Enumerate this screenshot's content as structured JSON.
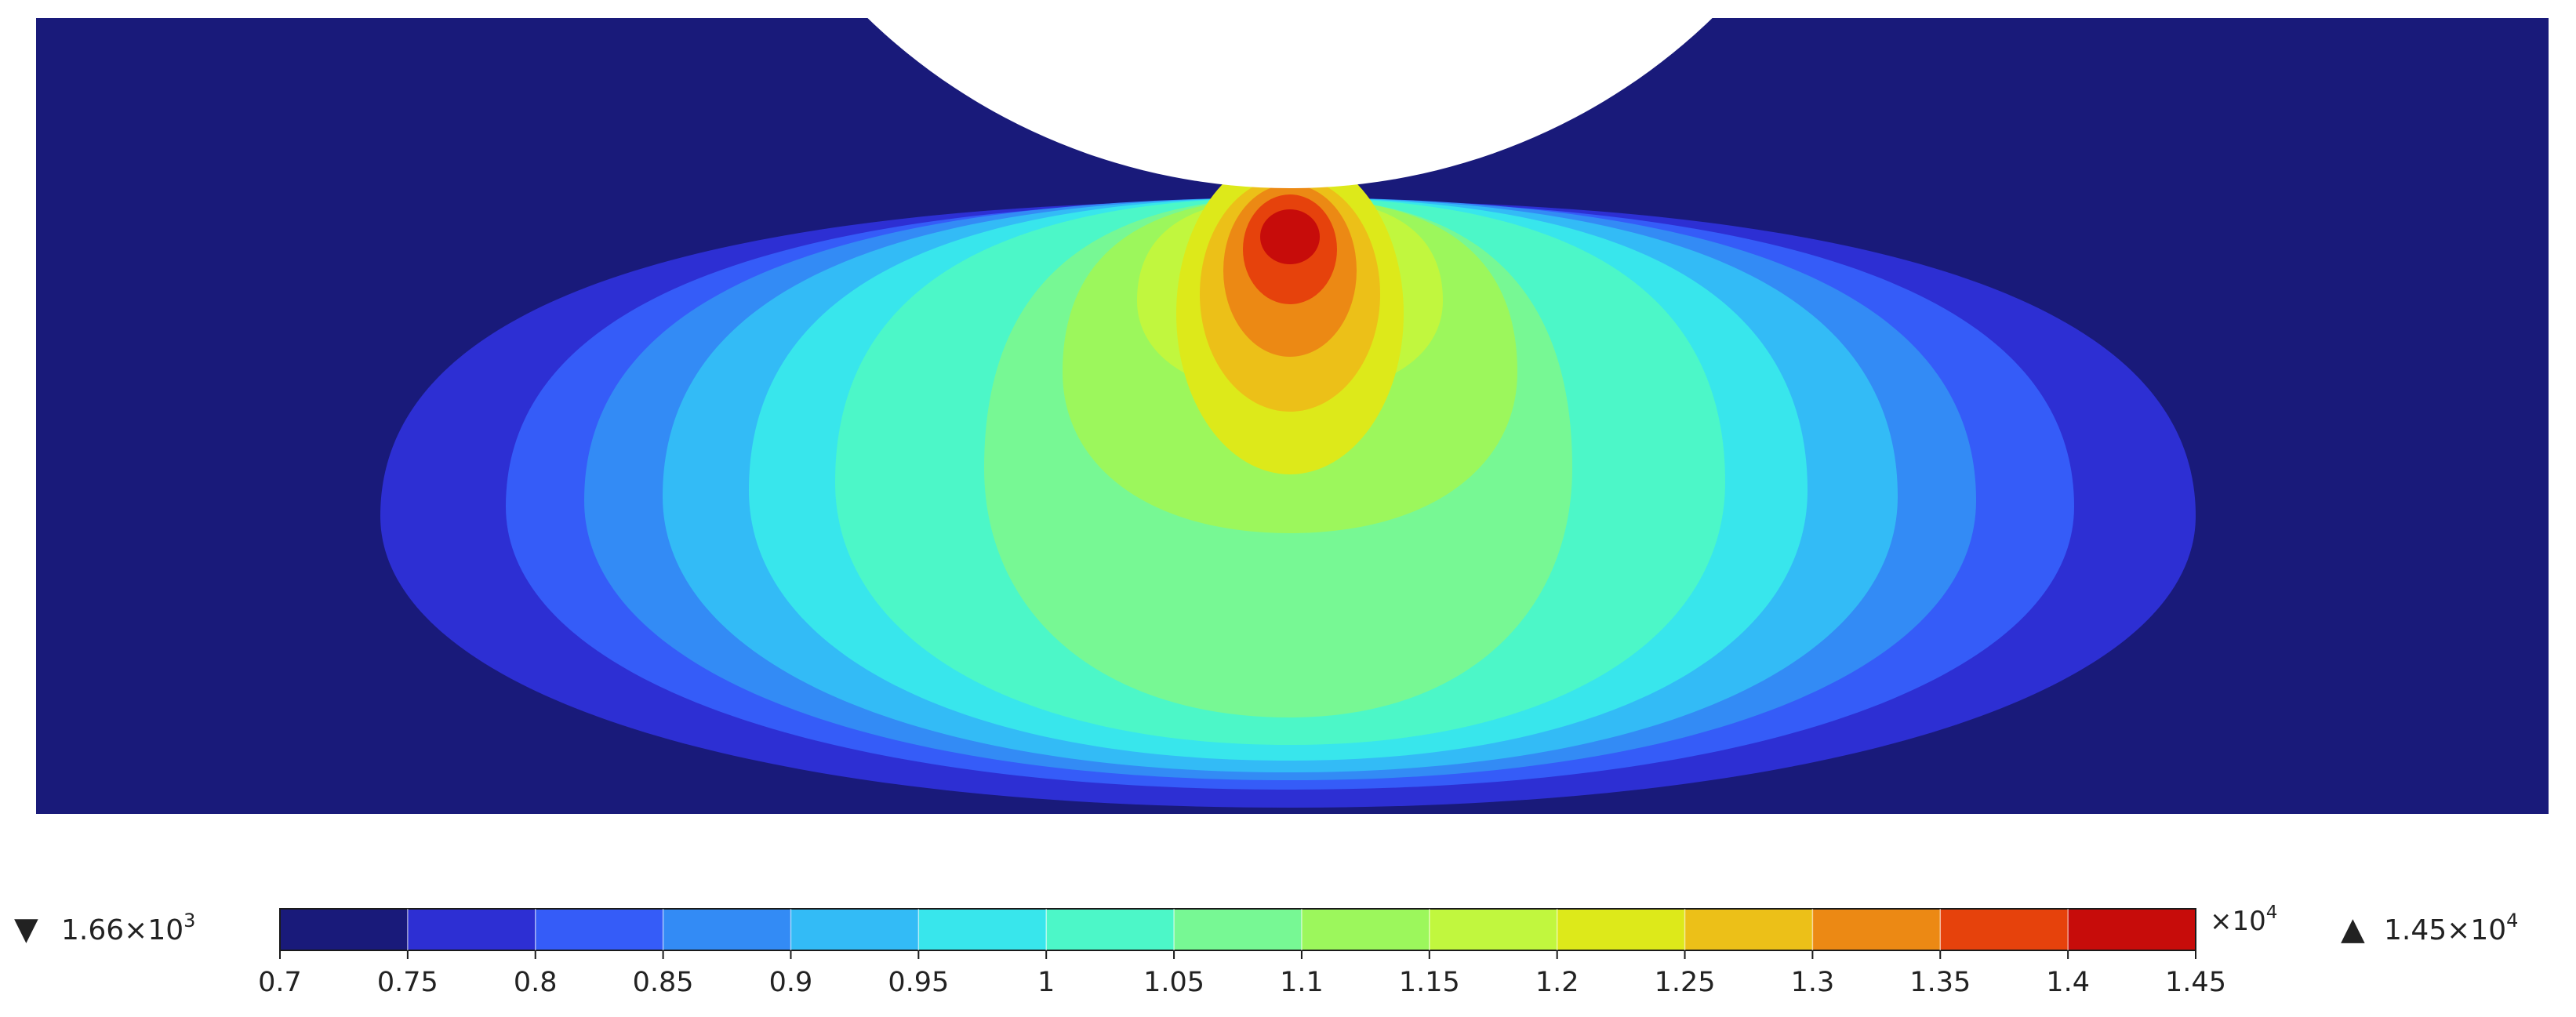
{
  "chart_data": {
    "type": "heatmap",
    "title": "",
    "xlabel": "",
    "ylabel": "",
    "grid": false,
    "legend": "bottom",
    "colorbar": {
      "scale_label": "×10",
      "scale_exponent": "4",
      "ticks": [
        "0.7",
        "0.75",
        "0.8",
        "0.85",
        "0.9",
        "0.95",
        "1",
        "1.05",
        "1.1",
        "1.15",
        "1.2",
        "1.25",
        "1.3",
        "1.35",
        "1.4",
        "1.45"
      ],
      "tick_values": [
        0.7,
        0.75,
        0.8,
        0.85,
        0.9,
        0.95,
        1.0,
        1.05,
        1.1,
        1.15,
        1.2,
        1.25,
        1.3,
        1.35,
        1.4,
        1.45
      ],
      "range": [
        0.7,
        1.45
      ],
      "colors": [
        "#191a7a",
        "#2d2fd3",
        "#355cf8",
        "#338bf5",
        "#33bbf6",
        "#38e6ec",
        "#4cf7c8",
        "#77f894",
        "#9cf75c",
        "#c1f73e",
        "#dde91a",
        "#ecc018",
        "#ec8914",
        "#e6420c",
        "#c70c0a"
      ]
    },
    "min": {
      "symbol": "▼",
      "mantissa": "1.66×10",
      "exponent": "3",
      "value": 1660
    },
    "max": {
      "symbol": "▲",
      "mantissa": "1.45×10",
      "exponent": "4",
      "value": 14500
    },
    "contour_levels": [
      0.75,
      0.8,
      0.85,
      0.9,
      0.95,
      1.0,
      1.05,
      1.1,
      1.15,
      1.2,
      1.25,
      1.3,
      1.35,
      1.4
    ]
  }
}
